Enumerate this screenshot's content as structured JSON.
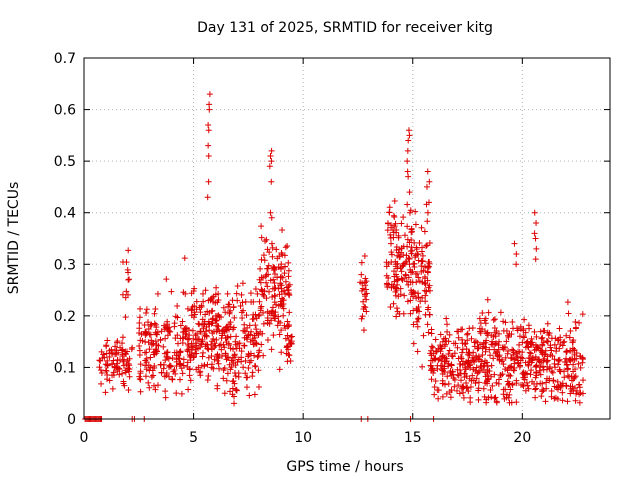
{
  "chart_data": {
    "type": "scatter",
    "title": "Day 131 of 2025, SRMTID for receiver kitg",
    "xlabel": "GPS time / hours",
    "ylabel": "SRMTID / TECUs",
    "xlim": [
      0,
      24
    ],
    "ylim": [
      0,
      0.7
    ],
    "xticks": [
      0,
      5,
      10,
      15,
      20
    ],
    "yticks": [
      0,
      0.1,
      0.2,
      0.3,
      0.4,
      0.5,
      0.6,
      0.7
    ],
    "grid": true,
    "marker": "+",
    "color": "#dd0000",
    "clusters": [
      {
        "x_start": 0.7,
        "x_end": 2.2,
        "center": 0.11,
        "spread": 0.025,
        "count": 90
      },
      {
        "x_start": 1.7,
        "x_end": 2.1,
        "center": 0.27,
        "spread": 0.03,
        "count": 12
      },
      {
        "x_start": 2.5,
        "x_end": 4.5,
        "center": 0.14,
        "spread": 0.04,
        "count": 160
      },
      {
        "x_start": 4.5,
        "x_end": 6.5,
        "center": 0.16,
        "spread": 0.05,
        "count": 210
      },
      {
        "x_start": 6.5,
        "x_end": 8.0,
        "center": 0.15,
        "spread": 0.05,
        "count": 150
      },
      {
        "x_start": 8.0,
        "x_end": 9.4,
        "center": 0.25,
        "spread": 0.05,
        "count": 150
      },
      {
        "x_start": 9.2,
        "x_end": 9.5,
        "center": 0.15,
        "spread": 0.02,
        "count": 20
      },
      {
        "x_start": 12.6,
        "x_end": 12.9,
        "center": 0.25,
        "spread": 0.04,
        "count": 24
      },
      {
        "x_start": 13.8,
        "x_end": 15.0,
        "center": 0.3,
        "spread": 0.05,
        "count": 130
      },
      {
        "x_start": 15.0,
        "x_end": 15.8,
        "center": 0.27,
        "spread": 0.06,
        "count": 90
      },
      {
        "x_start": 15.8,
        "x_end": 18.0,
        "center": 0.11,
        "spread": 0.035,
        "count": 200
      },
      {
        "x_start": 18.0,
        "x_end": 20.0,
        "center": 0.12,
        "spread": 0.045,
        "count": 190
      },
      {
        "x_start": 20.0,
        "x_end": 22.8,
        "center": 0.11,
        "spread": 0.04,
        "count": 260
      }
    ],
    "spikes": [
      {
        "x": 5.7,
        "values": [
          0.63,
          0.61,
          0.6,
          0.57,
          0.56,
          0.53,
          0.51,
          0.46,
          0.43
        ]
      },
      {
        "x": 8.5,
        "values": [
          0.52,
          0.51,
          0.5,
          0.49,
          0.46,
          0.4
        ]
      },
      {
        "x": 14.8,
        "values": [
          0.56,
          0.55,
          0.54,
          0.52,
          0.5,
          0.48,
          0.47,
          0.44
        ]
      },
      {
        "x": 15.7,
        "values": [
          0.48,
          0.46,
          0.45,
          0.42,
          0.4
        ]
      },
      {
        "x": 20.6,
        "values": [
          0.4,
          0.38,
          0.36,
          0.35,
          0.33,
          0.31
        ]
      },
      {
        "x": 19.7,
        "values": [
          0.34,
          0.32,
          0.3
        ]
      }
    ],
    "zero_points": [
      0.05,
      0.1,
      0.15,
      0.2,
      0.25,
      0.3,
      0.35,
      0.4,
      0.45,
      0.5,
      0.55,
      0.6,
      0.65,
      0.7,
      0.75,
      0.8,
      2.2,
      2.3,
      2.75,
      12.65,
      12.95,
      14.9,
      15.95
    ]
  }
}
